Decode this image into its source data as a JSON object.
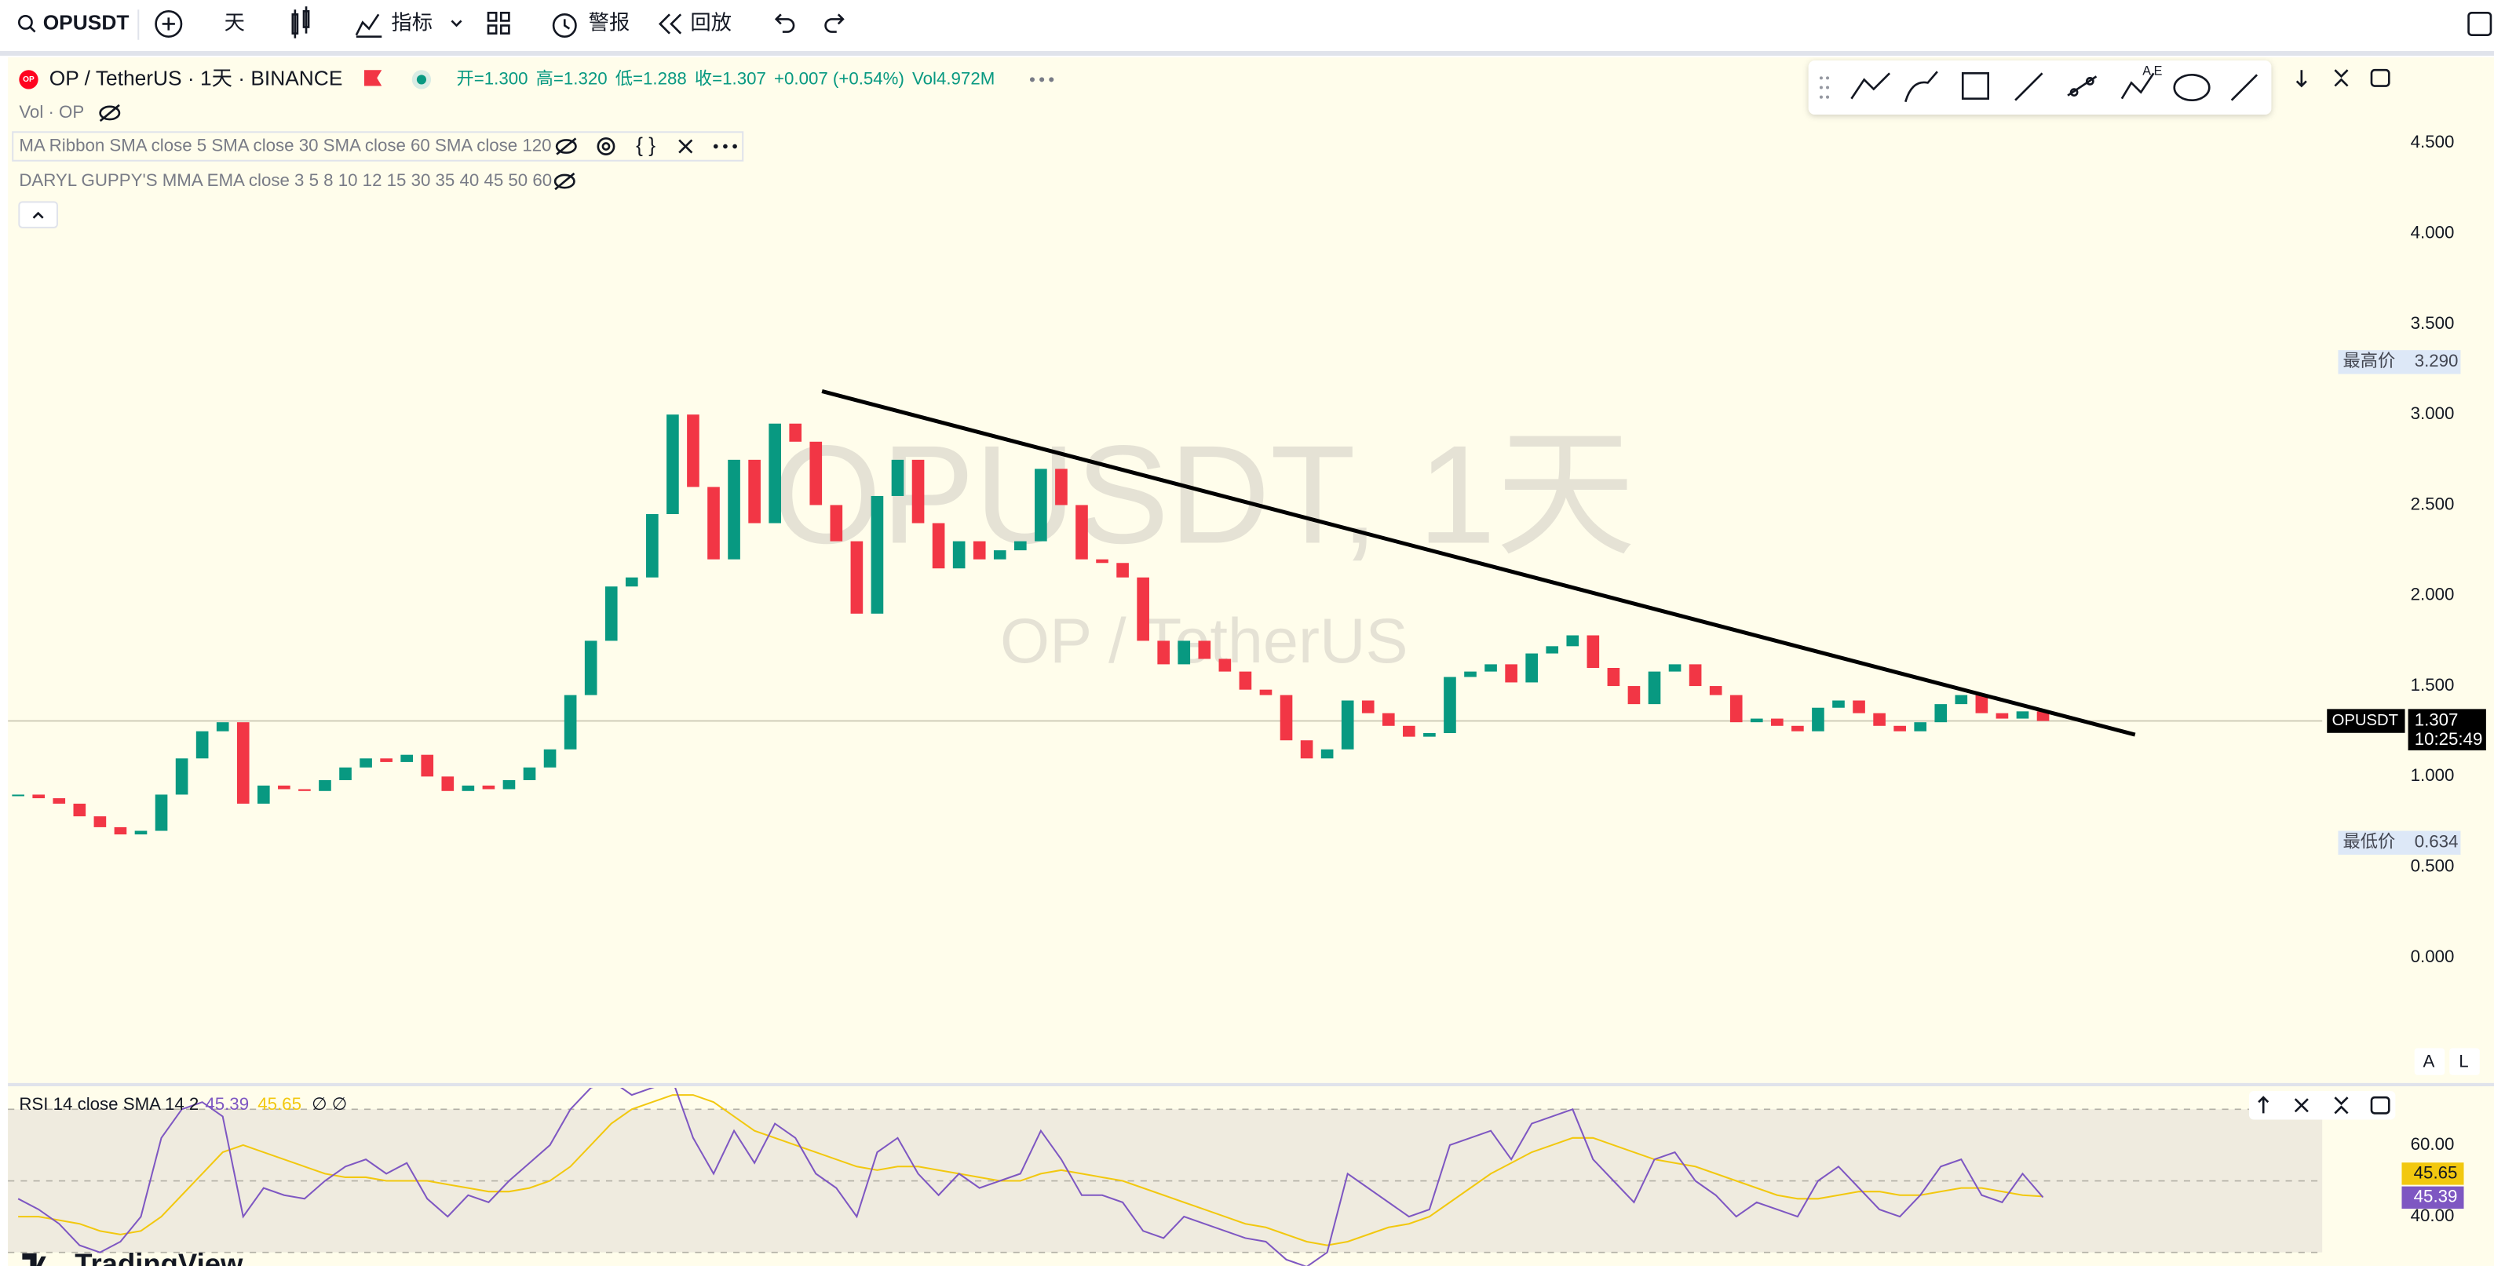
{
  "toolbar": {
    "symbol": "OPUSDT",
    "interval": "天",
    "indicators": "指标",
    "alerts": "警报",
    "replay": "回放"
  },
  "legend": {
    "title": "OP / TetherUS · 1天 · BINANCE",
    "ohlc": [
      "开=1.300",
      "高=1.320",
      "低=1.288",
      "收=1.307",
      "+0.007 (+0.54%)"
    ],
    "volume": "Vol4.972M",
    "vol_study": "Vol · OP",
    "ma_ribbon": "MA Ribbon SMA close 5 SMA close 30 SMA close 60 SMA close 120",
    "guppy": "DARYL GUPPY'S MMA EMA close 3 5 8 10 12 15 30 35 40 45 50 60",
    "rsi": "RSI 14 close SMA 14 2",
    "rsi_extra": "∅ ∅"
  },
  "watermark": {
    "main": "OPUSDT, 1天",
    "sub": "OP / TetherUS"
  },
  "scale_buttons": [
    "A",
    "L"
  ],
  "logo": "TradingView",
  "chart_data": [
    {
      "type": "candlestick",
      "grid": false,
      "up_color": "#089981",
      "down_color": "#f23645",
      "xlim": [
        -0.5,
        112.65
      ],
      "ylim": [
        -0.685,
        4.974
      ],
      "yticks": [
        {
          "value": 0,
          "label": "0.000"
        },
        {
          "value": 0.5,
          "label": "0.500"
        },
        {
          "value": 1,
          "label": "1.000"
        },
        {
          "value": 1.5,
          "label": "1.500"
        },
        {
          "value": 2,
          "label": "2.000"
        },
        {
          "value": 2.5,
          "label": "2.500"
        },
        {
          "value": 3,
          "label": "3.000"
        },
        {
          "value": 3.5,
          "label": "3.500"
        },
        {
          "value": 4,
          "label": "4.000"
        },
        {
          "value": 4.5,
          "label": "4.500"
        }
      ],
      "series": [
        {
          "name": "OPUSDT",
          "values": [
            0.9,
            0.88,
            0.85,
            0.78,
            0.72,
            0.68,
            0.7,
            0.9,
            1.1,
            1.25,
            1.3,
            0.85,
            0.95,
            0.93,
            0.92,
            0.98,
            1.05,
            1.1,
            1.08,
            1.12,
            1.0,
            0.92,
            0.95,
            0.93,
            0.98,
            1.05,
            1.15,
            1.45,
            1.75,
            2.05,
            2.1,
            2.45,
            3.0,
            2.6,
            2.2,
            2.75,
            2.4,
            2.95,
            2.85,
            2.5,
            2.3,
            1.9,
            2.55,
            2.75,
            2.4,
            2.15,
            2.3,
            2.2,
            2.25,
            2.3,
            2.7,
            2.5,
            2.2,
            2.18,
            2.1,
            1.75,
            1.62,
            1.75,
            1.65,
            1.58,
            1.48,
            1.45,
            1.2,
            1.1,
            1.15,
            1.42,
            1.35,
            1.28,
            1.22,
            1.24,
            1.55,
            1.58,
            1.62,
            1.52,
            1.68,
            1.72,
            1.78,
            1.6,
            1.5,
            1.4,
            1.58,
            1.62,
            1.5,
            1.45,
            1.3,
            1.32,
            1.28,
            1.25,
            1.38,
            1.42,
            1.35,
            1.28,
            1.25,
            1.3,
            1.4,
            1.45,
            1.35,
            1.32,
            1.36,
            1.307
          ]
        }
      ],
      "countdown": "10:25:49",
      "high": {
        "name": "最高价",
        "value": 3.29,
        "label": "3.290"
      },
      "low": {
        "name": "最低价",
        "value": 0.634
      },
      "trendline": {
        "x": [
          39.3,
          103.5
        ],
        "y": [
          3.129,
          1.231
        ]
      }
    },
    {
      "type": "line",
      "xlim": [
        -0.5,
        112.65
      ],
      "ylim": [
        26.22,
        76
      ],
      "yticks": [
        {
          "value": 40,
          "label": "40.00"
        },
        {
          "value": 60,
          "label": "60.00"
        }
      ],
      "bands": [
        70,
        50,
        30
      ],
      "series": [
        {
          "color": "#7e57c2",
          "values": [
            45,
            42,
            38,
            32,
            30,
            33,
            40,
            62,
            70,
            72,
            68,
            40,
            48,
            46,
            45,
            50,
            54,
            56,
            52,
            55,
            45,
            40,
            46,
            44,
            50,
            55,
            60,
            70,
            76,
            78,
            74,
            76,
            78,
            62,
            52,
            64,
            55,
            66,
            62,
            52,
            48,
            40,
            58,
            62,
            52,
            46,
            52,
            48,
            50,
            52,
            64,
            56,
            46,
            46,
            44,
            36,
            34,
            40,
            38,
            36,
            34,
            33,
            28,
            26,
            30,
            52,
            48,
            44,
            40,
            42,
            60,
            62,
            64,
            56,
            66,
            68,
            70,
            56,
            50,
            44,
            56,
            58,
            50,
            46,
            40,
            44,
            42,
            40,
            50,
            54,
            48,
            42,
            40,
            46,
            54,
            56,
            46,
            44,
            52,
            45.39
          ]
        },
        {
          "color": "#f2c80f",
          "values": [
            40,
            40,
            39,
            38,
            36,
            35,
            36,
            40,
            46,
            52,
            58,
            60,
            58,
            56,
            54,
            52,
            51,
            51,
            50,
            50,
            50,
            49,
            48,
            47,
            47,
            48,
            50,
            54,
            60,
            66,
            70,
            72,
            74,
            74,
            72,
            68,
            64,
            62,
            60,
            58,
            56,
            54,
            53,
            54,
            54,
            53,
            52,
            51,
            50,
            50,
            52,
            53,
            52,
            51,
            50,
            48,
            46,
            44,
            42,
            40,
            38,
            37,
            35,
            33,
            32,
            33,
            35,
            37,
            38,
            40,
            44,
            48,
            52,
            55,
            58,
            60,
            62,
            62,
            60,
            58,
            56,
            55,
            54,
            52,
            50,
            48,
            46,
            45,
            45,
            46,
            47,
            47,
            46,
            46,
            47,
            48,
            48,
            47,
            46,
            45.65
          ]
        }
      ]
    }
  ]
}
